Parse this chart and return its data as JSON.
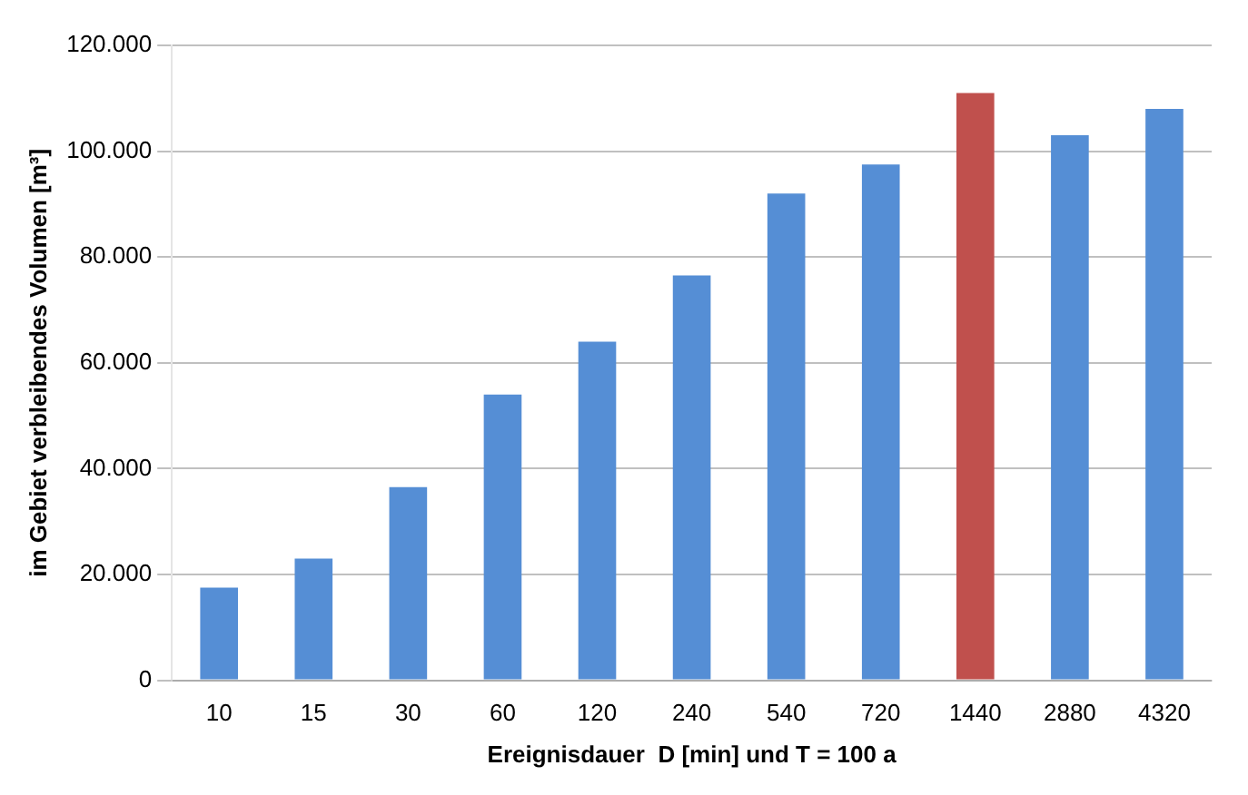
{
  "chart_data": {
    "type": "bar",
    "xlabel": "Ereignisdauer  D [min] und T = 100 a",
    "ylabel": "im Gebiet verbleibendes Volumen [m³]",
    "categories": [
      "10",
      "15",
      "30",
      "60",
      "120",
      "240",
      "540",
      "720",
      "1440",
      "2880",
      "4320"
    ],
    "values": [
      17500,
      23000,
      36500,
      54000,
      64000,
      76500,
      92000,
      97500,
      111000,
      103000,
      108000
    ],
    "colors": [
      "#558ed5",
      "#558ed5",
      "#558ed5",
      "#558ed5",
      "#558ed5",
      "#558ed5",
      "#558ed5",
      "#558ed5",
      "#c0504d",
      "#558ed5",
      "#558ed5"
    ],
    "ylim": [
      0,
      120000
    ],
    "yticks": [
      {
        "value": 0,
        "label": "0"
      },
      {
        "value": 20000,
        "label": "20.000"
      },
      {
        "value": 40000,
        "label": "40.000"
      },
      {
        "value": 60000,
        "label": "60.000"
      },
      {
        "value": 80000,
        "label": "80.000"
      },
      {
        "value": 100000,
        "label": "100.000"
      },
      {
        "value": 120000,
        "label": "120.000"
      }
    ],
    "grid": "y",
    "legend": false
  }
}
